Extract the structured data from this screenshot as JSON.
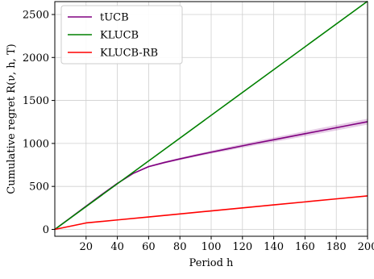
{
  "chart_data": {
    "type": "line",
    "title": "",
    "xlabel": "Period h",
    "ylabel": "Cumulative regret R(ν, h, T)",
    "xlim": [
      0,
      200
    ],
    "ylim": [
      -80,
      2650
    ],
    "xticks": [
      20,
      40,
      60,
      80,
      100,
      120,
      140,
      160,
      180,
      200
    ],
    "yticks": [
      0,
      500,
      1000,
      1500,
      2000,
      2500
    ],
    "grid": true,
    "legend_position": "top-left",
    "series": [
      {
        "name": "tUCB",
        "color": "#800080",
        "x": [
          0,
          10,
          20,
          30,
          40,
          50,
          60,
          70,
          80,
          90,
          100,
          110,
          120,
          130,
          140,
          150,
          160,
          170,
          180,
          190,
          200
        ],
        "values": [
          0,
          135,
          270,
          405,
          535,
          650,
          730,
          778,
          820,
          860,
          898,
          935,
          972,
          1008,
          1043,
          1078,
          1113,
          1148,
          1183,
          1218,
          1253
        ],
        "band_width": [
          0,
          0,
          0,
          0,
          5,
          8,
          10,
          12,
          14,
          16,
          18,
          20,
          22,
          24,
          26,
          28,
          30,
          31,
          32,
          33,
          34
        ]
      },
      {
        "name": "KLUCB",
        "color": "#008000",
        "x": [
          0,
          200
        ],
        "values": [
          0,
          2655
        ]
      },
      {
        "name": "KLUCB-RB",
        "color": "#ff0000",
        "x": [
          0,
          20,
          40,
          60,
          80,
          100,
          120,
          140,
          160,
          180,
          200
        ],
        "values": [
          0,
          75,
          110,
          145,
          180,
          215,
          250,
          285,
          320,
          355,
          390
        ]
      }
    ]
  }
}
